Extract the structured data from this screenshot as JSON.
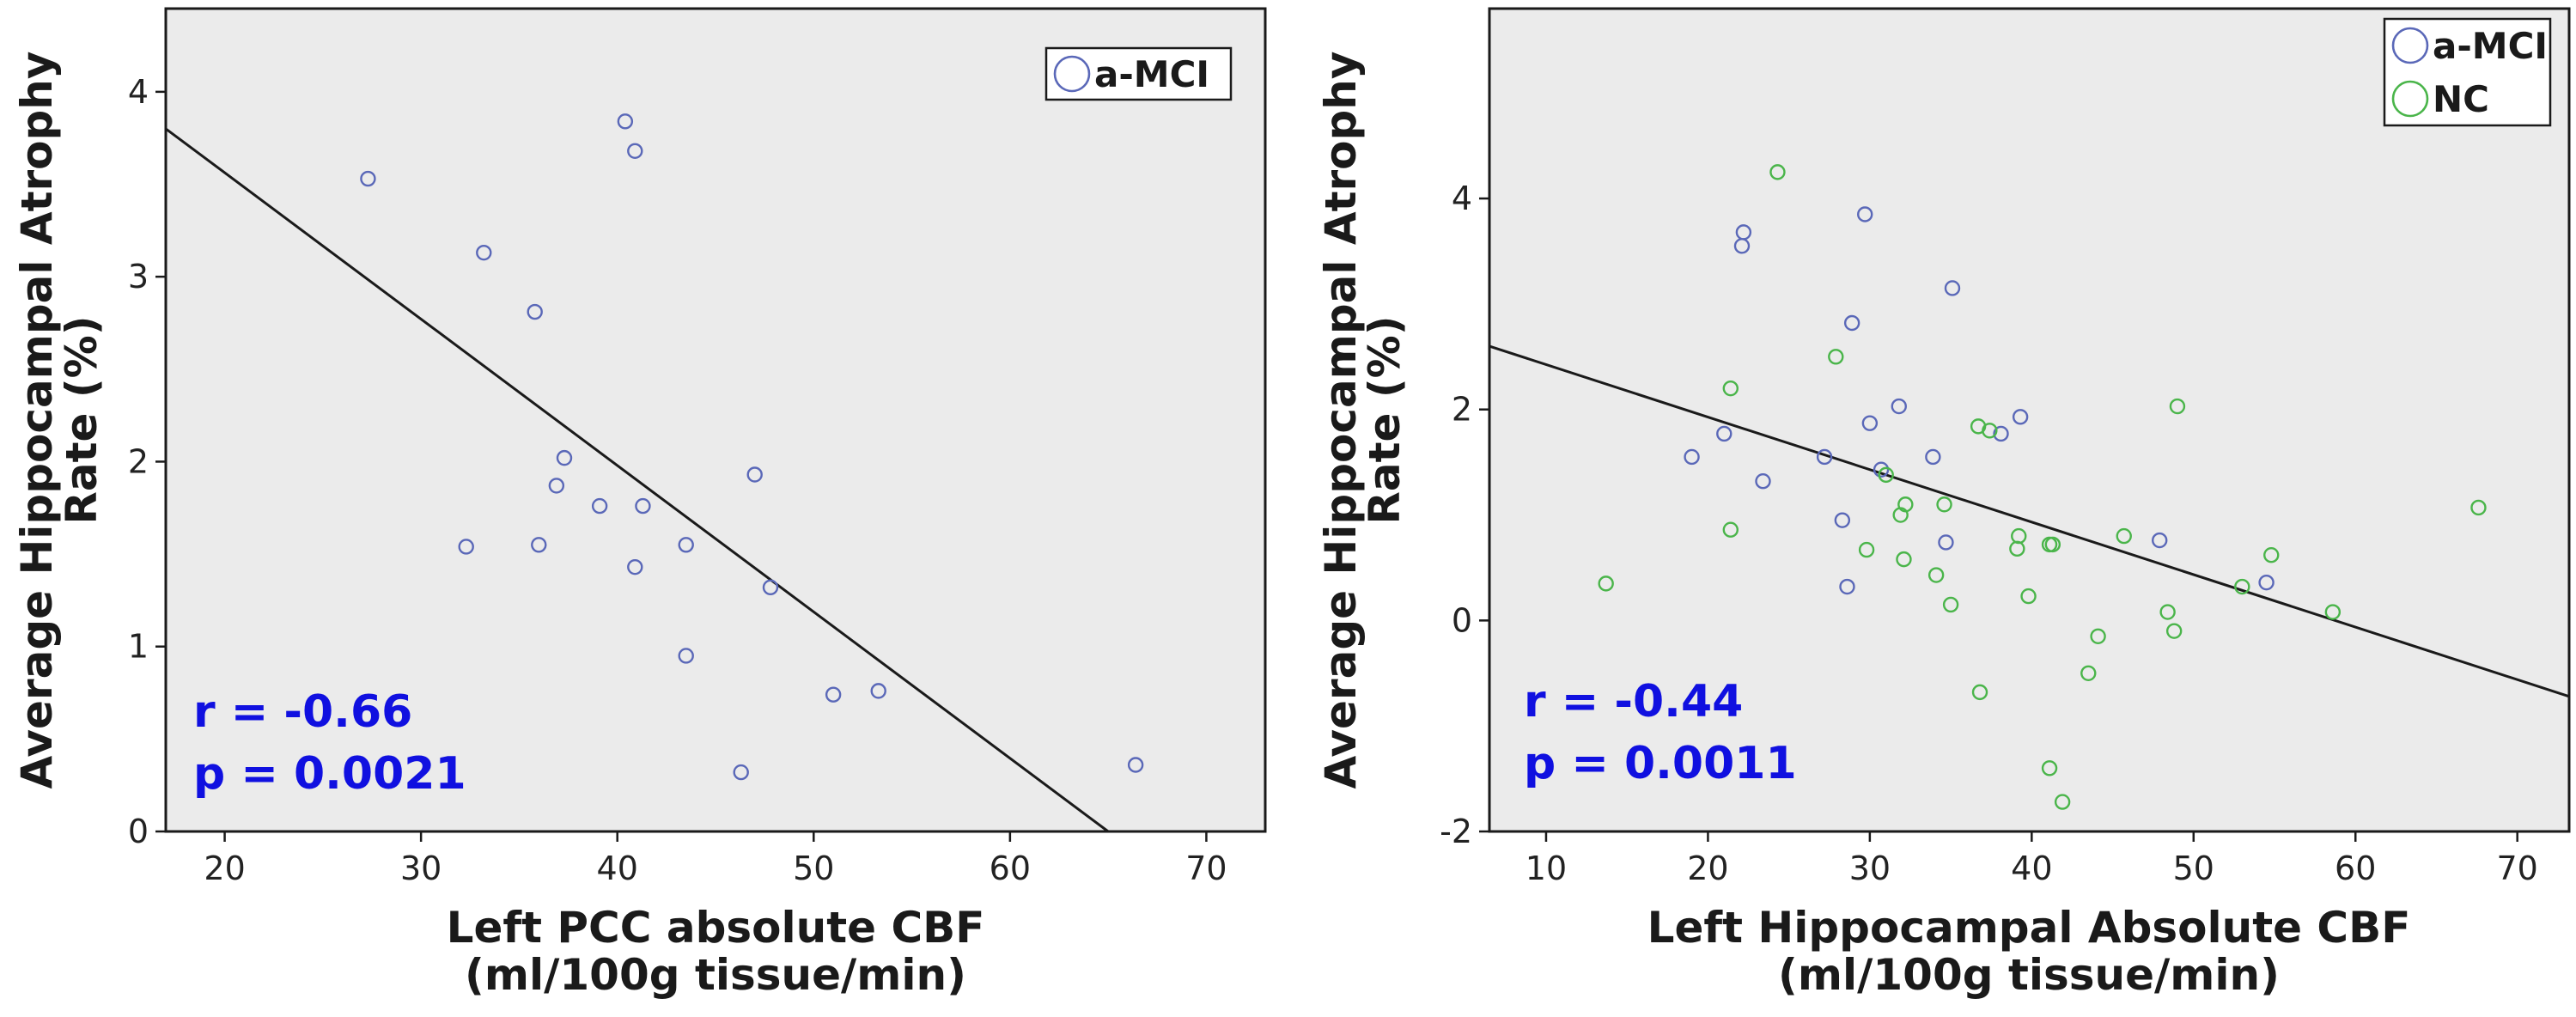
{
  "chart_data": [
    {
      "type": "scatter",
      "title": "",
      "xlabel_line1": "Left PCC absolute CBF",
      "xlabel_line2": "(ml/100g tissue/min)",
      "ylabel_line1": "Average Hippocampal Atrophy",
      "ylabel_line2": "Rate (%)",
      "xlim": [
        17,
        73
      ],
      "ylim": [
        0,
        4.45
      ],
      "xticks": [
        20,
        30,
        40,
        50,
        60,
        70
      ],
      "yticks": [
        0,
        1,
        2,
        3,
        4
      ],
      "grid": false,
      "legend_position": "top-right",
      "fit_line": {
        "x": [
          17,
          65.0
        ],
        "y": [
          3.8,
          0
        ]
      },
      "stats": [
        "r = -0.66",
        "p = 0.0021"
      ],
      "series": [
        {
          "name": "a-MCI",
          "color": "#5a68b8",
          "points": [
            [
              27.3,
              3.53
            ],
            [
              33.2,
              3.13
            ],
            [
              35.8,
              2.81
            ],
            [
              37.3,
              2.02
            ],
            [
              36.9,
              1.87
            ],
            [
              39.1,
              1.76
            ],
            [
              41.3,
              1.76
            ],
            [
              32.3,
              1.54
            ],
            [
              36.0,
              1.55
            ],
            [
              40.9,
              1.43
            ],
            [
              43.5,
              1.55
            ],
            [
              47.0,
              1.93
            ],
            [
              47.8,
              1.32
            ],
            [
              40.4,
              3.84
            ],
            [
              40.9,
              3.68
            ],
            [
              43.5,
              0.95
            ],
            [
              51.0,
              0.74
            ],
            [
              53.3,
              0.76
            ],
            [
              46.3,
              0.32
            ],
            [
              66.4,
              0.36
            ]
          ]
        }
      ]
    },
    {
      "type": "scatter",
      "title": "",
      "xlabel_line1": "Left Hippocampal Absolute CBF",
      "xlabel_line2": "(ml/100g tissue/min)",
      "ylabel_line1": "Average Hippocampal Atrophy",
      "ylabel_line2": "Rate (%)",
      "xlim": [
        6.5,
        73.2
      ],
      "ylim": [
        -2.0,
        5.8
      ],
      "xticks": [
        10,
        20,
        30,
        40,
        50,
        60,
        70
      ],
      "yticks": [
        -2,
        0,
        2,
        4
      ],
      "grid": false,
      "legend_position": "top-right",
      "fit_line": {
        "x": [
          6.5,
          73.2
        ],
        "y": [
          2.6,
          -0.72
        ]
      },
      "stats": [
        "r = -0.44",
        "p = 0.0011"
      ],
      "series": [
        {
          "name": "a-MCI",
          "color": "#5a68b8",
          "points": [
            [
              22.2,
              3.68
            ],
            [
              22.1,
              3.55
            ],
            [
              29.7,
              3.85
            ],
            [
              35.1,
              3.15
            ],
            [
              28.9,
              2.82
            ],
            [
              31.8,
              2.03
            ],
            [
              39.3,
              1.93
            ],
            [
              30.0,
              1.87
            ],
            [
              21.0,
              1.77
            ],
            [
              38.1,
              1.77
            ],
            [
              19.0,
              1.55
            ],
            [
              27.2,
              1.55
            ],
            [
              33.9,
              1.55
            ],
            [
              30.7,
              1.43
            ],
            [
              23.4,
              1.32
            ],
            [
              28.3,
              0.95
            ],
            [
              34.7,
              0.74
            ],
            [
              47.9,
              0.76
            ],
            [
              28.6,
              0.32
            ],
            [
              54.5,
              0.36
            ]
          ]
        },
        {
          "name": "NC",
          "color": "#4ab54a",
          "points": [
            [
              24.3,
              4.25
            ],
            [
              27.9,
              2.5
            ],
            [
              21.4,
              2.2
            ],
            [
              49.0,
              2.03
            ],
            [
              36.7,
              1.84
            ],
            [
              37.4,
              1.8
            ],
            [
              31.0,
              1.38
            ],
            [
              32.2,
              1.1
            ],
            [
              34.6,
              1.1
            ],
            [
              31.9,
              1.0
            ],
            [
              67.6,
              1.07
            ],
            [
              21.4,
              0.86
            ],
            [
              39.2,
              0.8
            ],
            [
              45.7,
              0.8
            ],
            [
              41.1,
              0.72
            ],
            [
              41.3,
              0.72
            ],
            [
              39.1,
              0.68
            ],
            [
              29.8,
              0.67
            ],
            [
              32.1,
              0.58
            ],
            [
              54.8,
              0.62
            ],
            [
              34.1,
              0.43
            ],
            [
              13.7,
              0.35
            ],
            [
              53.0,
              0.32
            ],
            [
              39.8,
              0.23
            ],
            [
              35.0,
              0.15
            ],
            [
              48.4,
              0.08
            ],
            [
              58.6,
              0.08
            ],
            [
              48.8,
              -0.1
            ],
            [
              44.1,
              -0.15
            ],
            [
              43.5,
              -0.5
            ],
            [
              36.8,
              -0.68
            ],
            [
              41.1,
              -1.4
            ],
            [
              41.9,
              -1.72
            ]
          ]
        }
      ]
    }
  ]
}
